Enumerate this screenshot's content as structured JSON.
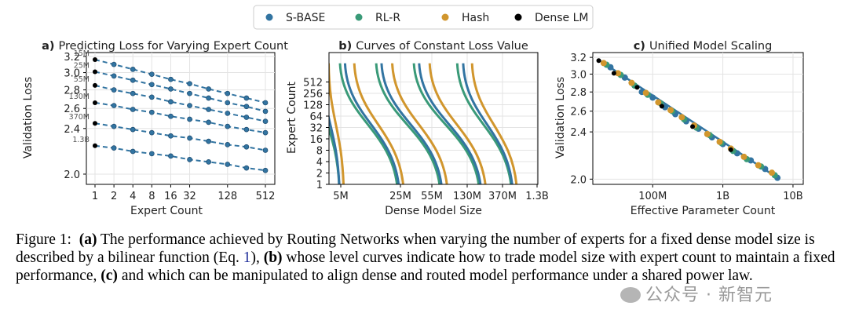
{
  "legend": [
    {
      "label": "S-BASE",
      "color": "#3274a1"
    },
    {
      "label": "RL-R",
      "color": "#3a9a78"
    },
    {
      "label": "Hash",
      "color": "#d1962d"
    },
    {
      "label": "Dense LM",
      "color": "#000000"
    }
  ],
  "caption": {
    "prefix": "Figure 1:",
    "a_tag": "(a)",
    "a_text": " The performance achieved by Routing Networks when varying the number of experts for a fixed dense model size is described by a bilinear function (Eq. ",
    "eq_ref": "1",
    "after_ref": "), ",
    "b_tag": "(b)",
    "b_text": " whose level curves indicate how to trade model size with expert count to maintain a fixed performance, ",
    "c_tag": "(c)",
    "c_text": " and which can be manipulated to align dense and routed model performance under a shared power law."
  },
  "watermark": "公众号 · 新智元",
  "chart_data": [
    {
      "type": "line",
      "panel": "a)",
      "title": "Predicting Loss for Varying Expert Count",
      "xlabel": "Expert Count",
      "ylabel": "Validation Loss",
      "xscale": "log2",
      "yscale": "log",
      "x": [
        1,
        2,
        4,
        8,
        16,
        32,
        64,
        128,
        256,
        512
      ],
      "xticks": [
        "1",
        "2",
        "4",
        "8",
        "16",
        "32",
        "128",
        "512"
      ],
      "yticks": [
        "2.0",
        "2.4",
        "2.6",
        "2.8",
        "3.0",
        "3.2"
      ],
      "ylim": [
        1.92,
        3.25
      ],
      "grid": true,
      "series": [
        {
          "name": "15M",
          "values": [
            3.16,
            3.1,
            3.04,
            2.98,
            2.92,
            2.87,
            2.81,
            2.76,
            2.71,
            2.66
          ]
        },
        {
          "name": "25M",
          "values": [
            3.01,
            2.96,
            2.91,
            2.86,
            2.81,
            2.76,
            2.71,
            2.66,
            2.62,
            2.57
          ]
        },
        {
          "name": "55M",
          "values": [
            2.85,
            2.8,
            2.76,
            2.72,
            2.67,
            2.63,
            2.59,
            2.55,
            2.51,
            2.47
          ]
        },
        {
          "name": "130M",
          "values": [
            2.66,
            2.63,
            2.59,
            2.56,
            2.52,
            2.49,
            2.46,
            2.42,
            2.39,
            2.36
          ]
        },
        {
          "name": "370M",
          "values": [
            2.45,
            2.42,
            2.39,
            2.36,
            2.33,
            2.31,
            2.28,
            2.25,
            2.23,
            2.2
          ]
        },
        {
          "name": "1.3B",
          "values": [
            2.24,
            2.22,
            2.19,
            2.17,
            2.15,
            2.12,
            2.1,
            2.08,
            2.05,
            2.03
          ]
        }
      ]
    },
    {
      "type": "line",
      "panel": "b)",
      "title": "Curves of Constant Loss Value",
      "xlabel": "Dense Model Size",
      "ylabel": "Expert Count",
      "xscale": "log",
      "yscale": "log2",
      "xticks": [
        "5M",
        "25M",
        "55M",
        "130M",
        "370M",
        "1.3B"
      ],
      "yticks": [
        "1",
        "2",
        "4",
        "8",
        "16",
        "32",
        "64",
        "128",
        "256",
        "512"
      ],
      "ylim": [
        1,
        1500
      ],
      "grid": true,
      "series": [
        {
          "name": "S-BASE",
          "curves": [
            {
              "x_at_1": 4.8,
              "x_at_512": 3.0
            },
            {
              "x_at_1": 24,
              "x_at_512": 5.6
            },
            {
              "x_at_1": 70,
              "x_at_512": 15
            },
            {
              "x_at_1": 195,
              "x_at_512": 40
            },
            {
              "x_at_1": 530,
              "x_at_512": 118
            }
          ]
        },
        {
          "name": "RL-R",
          "curves": [
            {
              "x_at_1": 4.8,
              "x_at_512": 2.6
            },
            {
              "x_at_1": 23,
              "x_at_512": 4.9
            },
            {
              "x_at_1": 67,
              "x_at_512": 13
            },
            {
              "x_at_1": 185,
              "x_at_512": 35
            },
            {
              "x_at_1": 510,
              "x_at_512": 102
            }
          ]
        },
        {
          "name": "Hash",
          "curves": [
            {
              "x_at_1": 5.4,
              "x_at_512": 3.6
            },
            {
              "x_at_1": 27,
              "x_at_512": 7.2
            },
            {
              "x_at_1": 80,
              "x_at_512": 20
            },
            {
              "x_at_1": 225,
              "x_at_512": 52
            },
            {
              "x_at_1": 620,
              "x_at_512": 150
            }
          ]
        }
      ]
    },
    {
      "type": "scatter",
      "panel": "c)",
      "title": "Unified Model Scaling",
      "xlabel": "Effective Parameter Count",
      "ylabel": "Validation Loss",
      "xscale": "log",
      "yscale": "log",
      "xticks": [
        "100M",
        "1B",
        "10B"
      ],
      "yticks": [
        "2.0",
        "2.4",
        "2.6",
        "2.8",
        "3.0",
        "3.2"
      ],
      "xlim": [
        14000000,
        14000000000
      ],
      "ylim": [
        1.96,
        3.26
      ],
      "grid": true,
      "trend": [
        [
          17000000,
          3.17
        ],
        [
          6000000000,
          2.01
        ]
      ],
      "series": [
        {
          "name": "Dense LM",
          "points": [
            [
              17000000,
              3.16
            ],
            [
              28000000,
              3.01
            ],
            [
              60000000,
              2.85
            ],
            [
              135000000,
              2.65
            ],
            [
              370000000,
              2.45
            ],
            [
              1300000000,
              2.24
            ]
          ]
        },
        {
          "name": "S-BASE",
          "points": [
            [
              25000000,
              3.08
            ],
            [
              40000000,
              2.96
            ],
            [
              70000000,
              2.8
            ],
            [
              100000000,
              2.74
            ],
            [
              150000000,
              2.64
            ],
            [
              210000000,
              2.57
            ],
            [
              300000000,
              2.5
            ],
            [
              450000000,
              2.43
            ],
            [
              700000000,
              2.35
            ],
            [
              1000000000,
              2.29
            ],
            [
              1600000000,
              2.21
            ],
            [
              2500000000,
              2.15
            ],
            [
              4000000000,
              2.08
            ],
            [
              6000000000,
              2.01
            ]
          ]
        },
        {
          "name": "RL-R",
          "points": [
            [
              22000000,
              3.11
            ],
            [
              35000000,
              2.99
            ],
            [
              55000000,
              2.87
            ],
            [
              85000000,
              2.77
            ],
            [
              130000000,
              2.68
            ],
            [
              190000000,
              2.6
            ],
            [
              280000000,
              2.52
            ],
            [
              420000000,
              2.44
            ],
            [
              650000000,
              2.37
            ],
            [
              950000000,
              2.3
            ],
            [
              1400000000,
              2.23
            ],
            [
              2200000000,
              2.16
            ],
            [
              3500000000,
              2.1
            ],
            [
              5500000000,
              2.03
            ]
          ]
        },
        {
          "name": "Hash",
          "points": [
            [
              20000000,
              3.13
            ],
            [
              32000000,
              3.01
            ],
            [
              50000000,
              2.9
            ],
            [
              80000000,
              2.79
            ],
            [
              120000000,
              2.69
            ],
            [
              180000000,
              2.61
            ],
            [
              260000000,
              2.54
            ],
            [
              390000000,
              2.46
            ],
            [
              600000000,
              2.38
            ],
            [
              900000000,
              2.31
            ],
            [
              1300000000,
              2.25
            ],
            [
              2000000000,
              2.18
            ],
            [
              3200000000,
              2.11
            ],
            [
              5000000000,
              2.05
            ]
          ]
        }
      ]
    }
  ]
}
